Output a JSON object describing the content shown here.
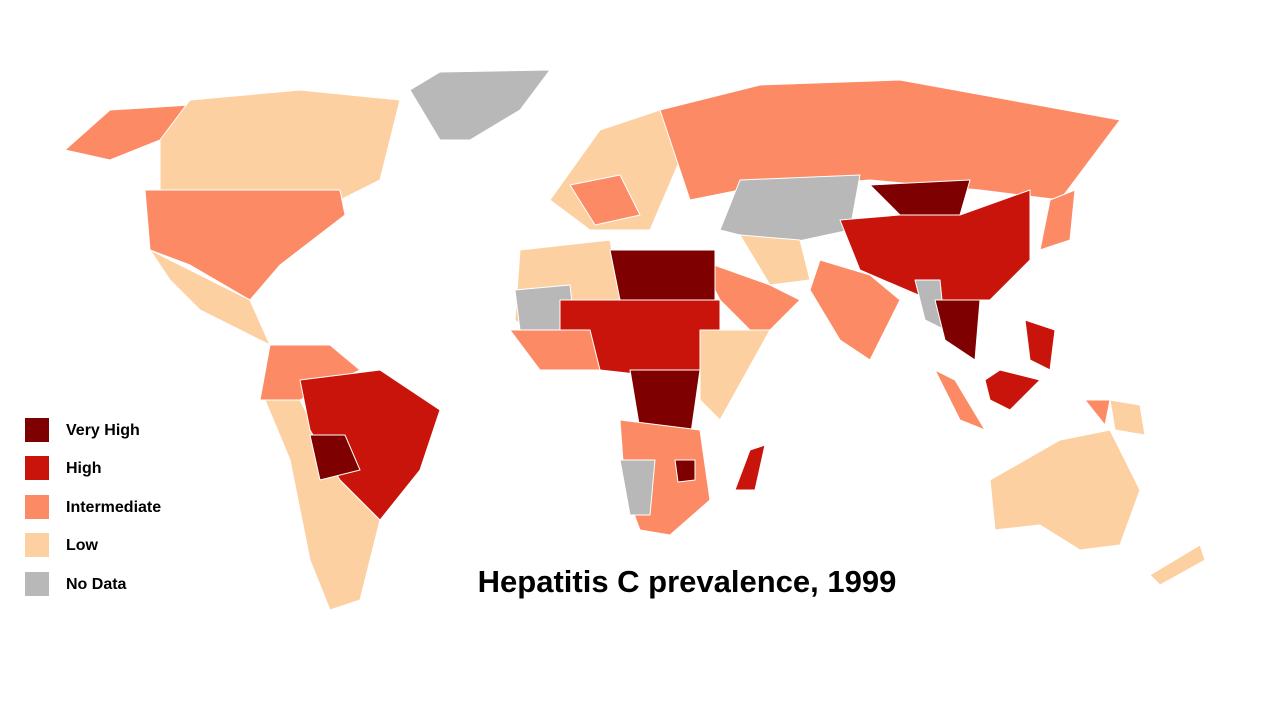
{
  "title": "Hepatitis C prevalence, 1999",
  "legend": [
    {
      "label": "Very High",
      "color": "#7f0000"
    },
    {
      "label": "High",
      "color": "#c8140a"
    },
    {
      "label": "Intermediate",
      "color": "#fc8a64"
    },
    {
      "label": "Low",
      "color": "#fdd0a2"
    },
    {
      "label": "No Data",
      "color": "#b8b8b8"
    }
  ]
}
